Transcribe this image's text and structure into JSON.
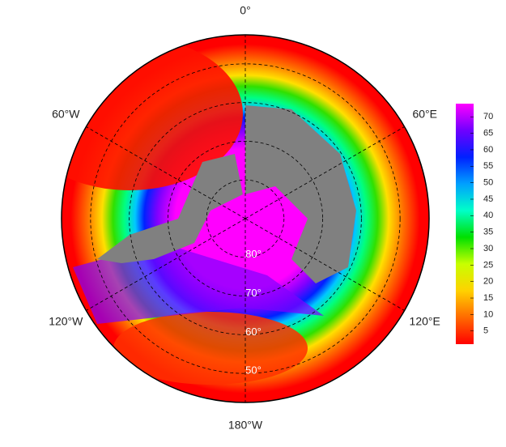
{
  "map": {
    "projection": "south polar stereographic",
    "latlim": [
      -90,
      -42.5
    ],
    "lonticks": [
      {
        "value": 0,
        "label": "0°"
      },
      {
        "value": 60,
        "label": "60°E"
      },
      {
        "value": 120,
        "label": "120°E"
      },
      {
        "value": 180,
        "label": "180°W"
      },
      {
        "value": -120,
        "label": "120°W"
      },
      {
        "value": -60,
        "label": "60°W"
      }
    ],
    "latticks": [
      {
        "value": -80,
        "label": "80°"
      },
      {
        "value": -70,
        "label": "70°"
      },
      {
        "value": -60,
        "label": "60°"
      },
      {
        "value": -50,
        "label": "50°"
      }
    ],
    "colorbar": {
      "clim": [
        1,
        74
      ],
      "ticks": [
        5,
        10,
        15,
        20,
        25,
        30,
        35,
        40,
        45,
        50,
        55,
        60,
        65,
        70
      ],
      "colormap": [
        "#ff0000",
        "#ff6a00",
        "#ffd200",
        "#c8ff00",
        "#00e000",
        "#00ffc8",
        "#00a0ff",
        "#0020ff",
        "#7000ff",
        "#ff00ff"
      ]
    }
  }
}
